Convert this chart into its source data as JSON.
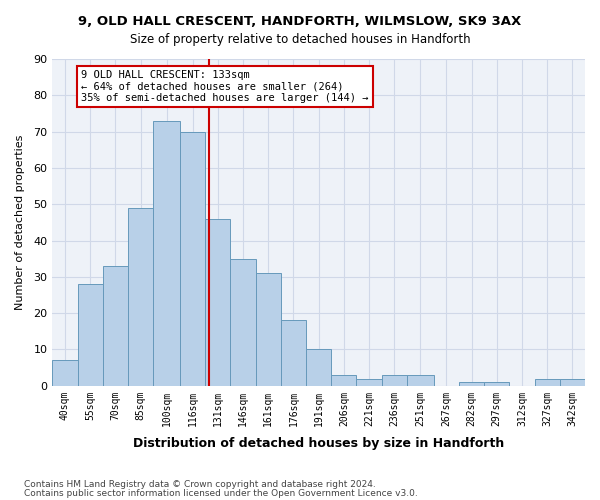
{
  "title_line1": "9, OLD HALL CRESCENT, HANDFORTH, WILMSLOW, SK9 3AX",
  "title_line2": "Size of property relative to detached houses in Handforth",
  "xlabel": "Distribution of detached houses by size in Handforth",
  "ylabel": "Number of detached properties",
  "bar_values": [
    7,
    28,
    33,
    49,
    73,
    70,
    46,
    35,
    31,
    18,
    10,
    3,
    2,
    3,
    3,
    0,
    1,
    1,
    0,
    2,
    2
  ],
  "bin_labels": [
    "40sqm",
    "55sqm",
    "70sqm",
    "85sqm",
    "100sqm",
    "116sqm",
    "131sqm",
    "146sqm",
    "161sqm",
    "176sqm",
    "191sqm",
    "206sqm",
    "221sqm",
    "236sqm",
    "251sqm",
    "267sqm",
    "282sqm",
    "297sqm",
    "312sqm",
    "327sqm",
    "342sqm"
  ],
  "bin_edges": [
    40,
    55,
    70,
    85,
    100,
    116,
    131,
    146,
    161,
    176,
    191,
    206,
    221,
    236,
    251,
    267,
    282,
    297,
    312,
    327,
    342,
    357
  ],
  "bar_color": "#b8d0e8",
  "bar_edge_color": "#6699bb",
  "vline_x": 133,
  "vline_color": "#cc0000",
  "ylim": [
    0,
    90
  ],
  "yticks": [
    0,
    10,
    20,
    30,
    40,
    50,
    60,
    70,
    80,
    90
  ],
  "annotation_text": "9 OLD HALL CRESCENT: 133sqm\n← 64% of detached houses are smaller (264)\n35% of semi-detached houses are larger (144) →",
  "annotation_box_color": "#cc0000",
  "footnote_line1": "Contains HM Land Registry data © Crown copyright and database right 2024.",
  "footnote_line2": "Contains public sector information licensed under the Open Government Licence v3.0.",
  "bg_color": "#eef2f8",
  "grid_color": "#d0d8e8"
}
